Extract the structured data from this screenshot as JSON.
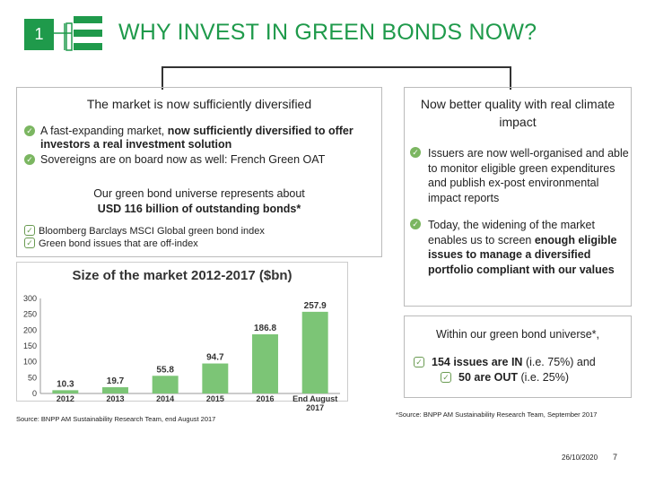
{
  "header": {
    "slide_number": "1",
    "title": "WHY INVEST IN GREEN BONDS NOW?"
  },
  "left_panel": {
    "heading": "The market is now sufficiently diversified",
    "bullets": [
      {
        "pre": "A fast-expanding market, ",
        "bold": "now sufficiently diversified to offer investors a real investment solution",
        "post": ""
      },
      {
        "pre": "Sovereigns are on board now as well: French Green OAT",
        "bold": "",
        "post": ""
      }
    ],
    "universe_line1": "Our green bond universe represents about",
    "universe_line2": "USD 116 billion of outstanding bonds*",
    "index_items": [
      "Bloomberg Barclays MSCI Global green bond index",
      "Green bond issues that are off-index"
    ]
  },
  "right_panel": {
    "heading": "Now better quality with real climate impact",
    "bullets": [
      {
        "pre": "Issuers are now well-organised and able to monitor eligible green expenditures and publish ex-post environmental impact reports",
        "bold": "",
        "post": ""
      },
      {
        "pre": "Today, the widening of the market enables us to screen ",
        "bold": "enough eligible issues to manage a diversified portfolio compliant with our values",
        "post": ""
      }
    ]
  },
  "universe_box": {
    "intro": "Within our green bond universe*,",
    "items": [
      {
        "bold": "154 issues are IN",
        "rest": " (i.e. 75%) and"
      },
      {
        "bold": "50 are OUT",
        "rest": " (i.e. 25%)"
      }
    ]
  },
  "chart_data": {
    "type": "bar",
    "title": "Size of the market 2012-2017 ($bn)",
    "categories": [
      "2012",
      "2013",
      "2014",
      "2015",
      "2016",
      "End August 2017"
    ],
    "values": [
      10.3,
      19.7,
      55.8,
      94.7,
      186.8,
      257.9
    ],
    "data_labels": [
      "10.3",
      "19.7",
      "55.8",
      "94.7",
      "186.8",
      "257.9"
    ],
    "yticks": [
      "0",
      "50",
      "100",
      "150",
      "200",
      "250",
      "300"
    ],
    "ylim": [
      0,
      300
    ],
    "bar_color": "#7cc576",
    "grid": false
  },
  "sources": {
    "left": "Source: BNPP AM Sustainability Research Team, end August 2017",
    "right": "*Source: BNPP AM Sustainability Research Team, September 2017"
  },
  "footer": {
    "date": "26/10/2020",
    "page": "7"
  },
  "colors": {
    "brand_green": "#1f9a4b",
    "bullet_green": "#7bb661",
    "bar_green": "#7cc576"
  }
}
